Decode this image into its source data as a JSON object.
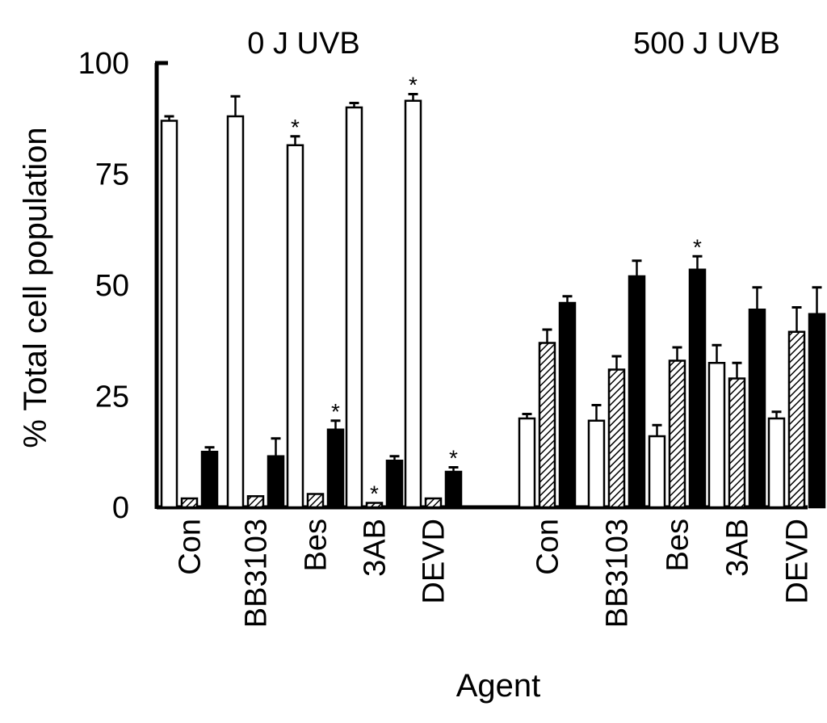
{
  "chart_data": {
    "type": "bar",
    "ylabel": "% Total cell population",
    "xlabel": "Agent",
    "ylim": [
      0,
      100
    ],
    "yticks": [
      "0",
      "25",
      "50",
      "75",
      "100"
    ],
    "grid": false,
    "groups": [
      {
        "label": "0 J UVB",
        "categories": [
          {
            "label": "Con",
            "values": [
              87,
              2,
              12.5
            ],
            "errors": [
              1,
              0,
              1
            ],
            "stars": [
              false,
              false,
              false
            ]
          },
          {
            "label": "BB3103",
            "values": [
              88,
              2.5,
              11.5
            ],
            "errors": [
              4.5,
              0,
              4
            ],
            "stars": [
              false,
              false,
              false
            ]
          },
          {
            "label": "Bes",
            "values": [
              81.5,
              3,
              17.5
            ],
            "errors": [
              2,
              0,
              2
            ],
            "stars": [
              true,
              false,
              true
            ]
          },
          {
            "label": "3AB",
            "values": [
              90,
              1,
              10.5
            ],
            "errors": [
              1,
              0,
              1
            ],
            "stars": [
              false,
              true,
              false
            ]
          },
          {
            "label": "DEVD",
            "values": [
              91.5,
              2,
              8
            ],
            "errors": [
              1.5,
              0,
              1
            ],
            "stars": [
              true,
              false,
              true
            ]
          }
        ]
      },
      {
        "label": "500 J UVB",
        "categories": [
          {
            "label": "Con",
            "values": [
              20,
              37,
              46
            ],
            "errors": [
              1,
              3,
              1.5
            ],
            "stars": [
              false,
              false,
              false
            ]
          },
          {
            "label": "BB3103",
            "values": [
              19.5,
              31,
              52
            ],
            "errors": [
              3.5,
              3,
              3.5
            ],
            "stars": [
              false,
              false,
              false
            ]
          },
          {
            "label": "Bes",
            "values": [
              16,
              33,
              53.5
            ],
            "errors": [
              2.5,
              3,
              3
            ],
            "stars": [
              false,
              false,
              true
            ]
          },
          {
            "label": "3AB",
            "values": [
              32.5,
              29,
              44.5
            ],
            "errors": [
              4,
              3.5,
              5
            ],
            "stars": [
              false,
              false,
              false
            ]
          },
          {
            "label": "DEVD",
            "values": [
              20,
              39.5,
              43.5
            ],
            "errors": [
              1.5,
              5.5,
              6
            ],
            "stars": [
              false,
              false,
              false
            ]
          }
        ]
      }
    ],
    "series": [
      {
        "fill": "white"
      },
      {
        "fill": "hatched"
      },
      {
        "fill": "black"
      }
    ],
    "annotation_mark": "*"
  }
}
